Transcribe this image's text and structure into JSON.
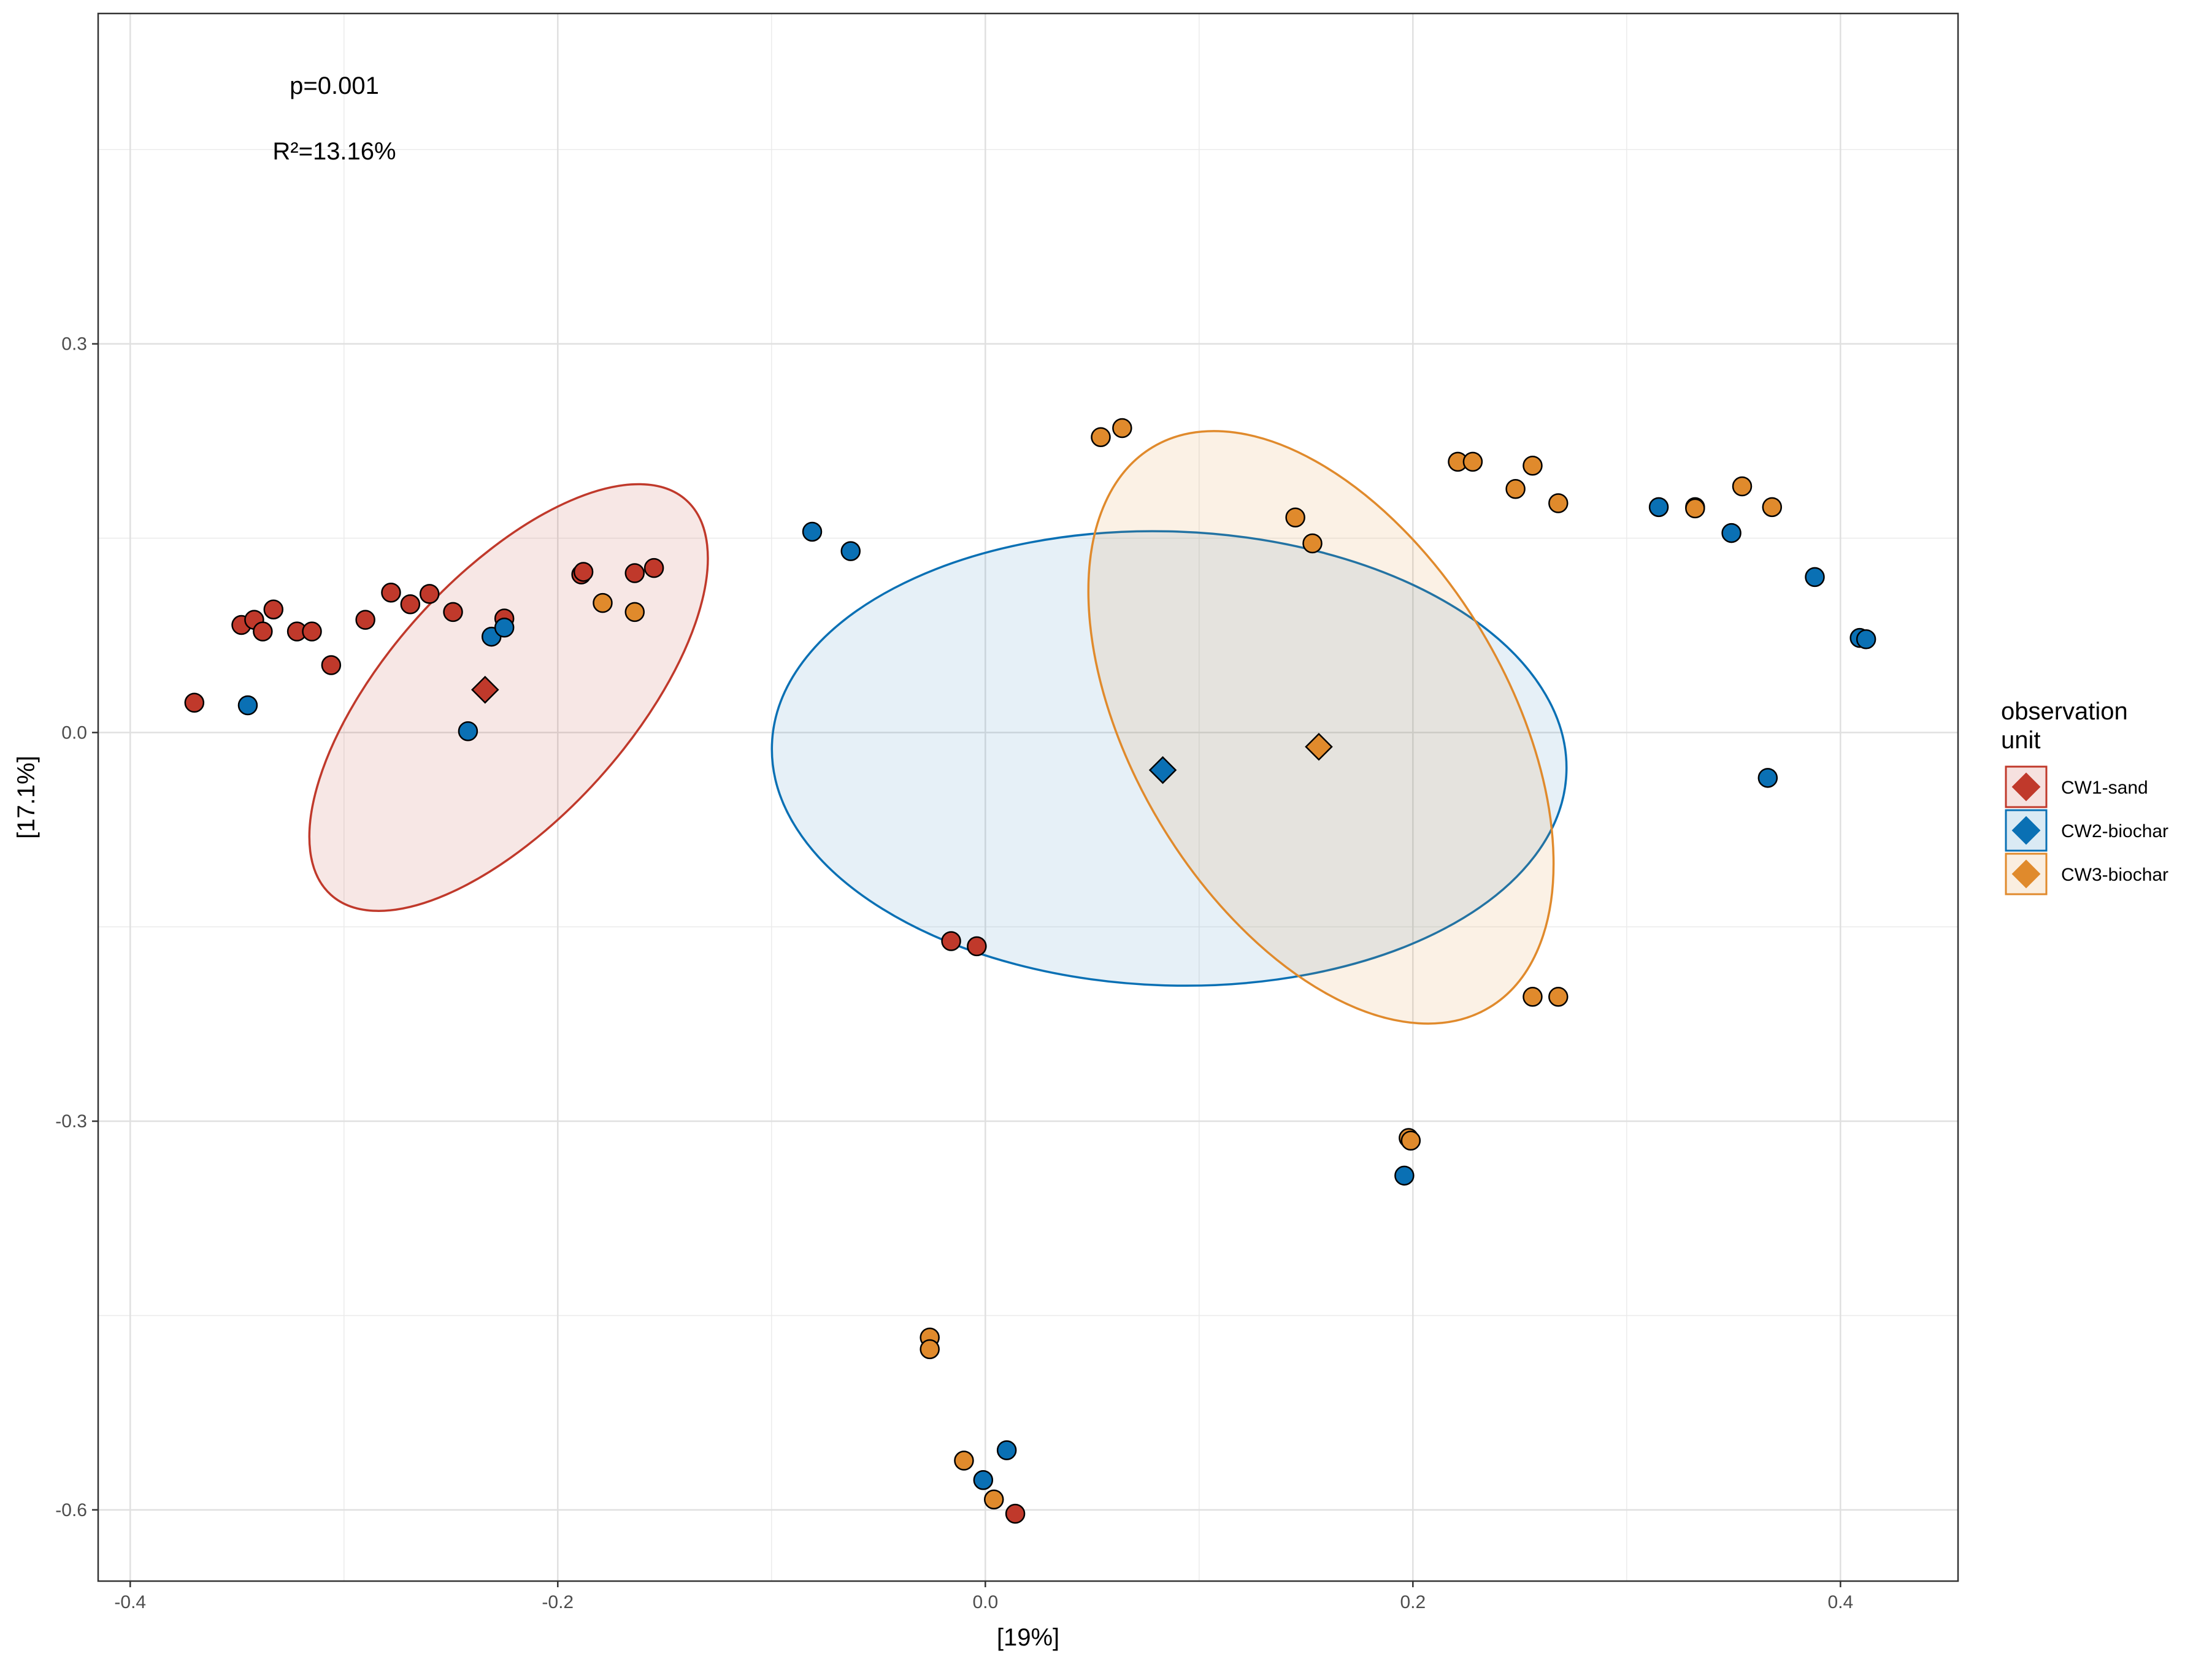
{
  "chart_data": {
    "type": "scatter",
    "xlabel": "[19%]",
    "ylabel": "[17.1%]",
    "xlim": [
      -0.415,
      0.455
    ],
    "ylim": [
      -0.655,
      0.555
    ],
    "x_ticks": [
      -0.4,
      -0.2,
      0.0,
      0.2,
      0.4
    ],
    "x_tick_labels": [
      "-0.4",
      "-0.2",
      "0.0",
      "0.2",
      "0.4"
    ],
    "y_ticks": [
      0.3,
      0.0,
      -0.3,
      -0.6
    ],
    "y_tick_labels": [
      "0.3",
      "0.0",
      "-0.3",
      "-0.6"
    ],
    "grid": true,
    "annotations": [
      "p=0.001",
      "R²=13.16%"
    ],
    "legend": {
      "title_lines": [
        "observation",
        "unit"
      ],
      "position": "right"
    },
    "series": [
      {
        "name": "CW1-sand",
        "color": "#c0392b",
        "fill_opacity": 0.12,
        "centroid": [
          -0.234,
          0.033
        ],
        "ellipse": {
          "center": [
            -0.223,
            0.027
          ],
          "rx": 0.067,
          "ry": 0.154,
          "angle_deg": -42
        },
        "points": [
          [
            -0.37,
            0.023
          ],
          [
            -0.348,
            0.083
          ],
          [
            -0.342,
            0.087
          ],
          [
            -0.338,
            0.078
          ],
          [
            -0.333,
            0.095
          ],
          [
            -0.322,
            0.078
          ],
          [
            -0.315,
            0.078
          ],
          [
            -0.306,
            0.052
          ],
          [
            -0.29,
            0.087
          ],
          [
            -0.278,
            0.108
          ],
          [
            -0.269,
            0.099
          ],
          [
            -0.26,
            0.107
          ],
          [
            -0.249,
            0.093
          ],
          [
            -0.225,
            0.088
          ],
          [
            -0.189,
            0.122
          ],
          [
            -0.188,
            0.124
          ],
          [
            -0.164,
            0.123
          ],
          [
            -0.155,
            0.127
          ],
          [
            -0.016,
            -0.161
          ],
          [
            -0.004,
            -0.165
          ],
          [
            0.014,
            -0.603
          ]
        ]
      },
      {
        "name": "CW2-biochar",
        "color": "#0a70b4",
        "fill_opacity": 0.1,
        "centroid": [
          0.083,
          -0.029
        ],
        "ellipse": {
          "center": [
            0.086,
            -0.02
          ],
          "rx": 0.175,
          "ry": 0.186,
          "angle_deg": 88
        },
        "points": [
          [
            -0.345,
            0.021
          ],
          [
            -0.242,
            0.001
          ],
          [
            -0.231,
            0.074
          ],
          [
            -0.225,
            0.081
          ],
          [
            -0.081,
            0.155
          ],
          [
            -0.063,
            0.14
          ],
          [
            0.196,
            -0.342
          ],
          [
            0.315,
            0.174
          ],
          [
            0.349,
            0.154
          ],
          [
            0.366,
            -0.035
          ],
          [
            0.388,
            0.12
          ],
          [
            0.409,
            0.073
          ],
          [
            0.412,
            0.072
          ],
          [
            0.01,
            -0.554
          ],
          [
            -0.001,
            -0.577
          ]
        ]
      },
      {
        "name": "CW3-biochar",
        "color": "#e08a2c",
        "fill_opacity": 0.12,
        "centroid": [
          0.156,
          -0.011
        ],
        "ellipse": {
          "center": [
            0.157,
            0.004
          ],
          "rx": 0.096,
          "ry": 0.209,
          "angle_deg": 31
        },
        "points": [
          [
            -0.179,
            0.1
          ],
          [
            -0.164,
            0.093
          ],
          [
            0.054,
            0.228
          ],
          [
            0.064,
            0.235
          ],
          [
            0.145,
            0.166
          ],
          [
            0.153,
            0.146
          ],
          [
            0.198,
            -0.313
          ],
          [
            0.199,
            -0.315
          ],
          [
            0.221,
            0.209
          ],
          [
            0.228,
            0.209
          ],
          [
            0.248,
            0.188
          ],
          [
            0.256,
            0.206
          ],
          [
            0.256,
            -0.204
          ],
          [
            0.268,
            0.177
          ],
          [
            0.268,
            -0.204
          ],
          [
            0.332,
            0.174
          ],
          [
            0.332,
            0.173
          ],
          [
            0.354,
            0.19
          ],
          [
            0.368,
            0.174
          ],
          [
            -0.026,
            -0.467
          ],
          [
            -0.026,
            -0.476
          ],
          [
            -0.01,
            -0.562
          ],
          [
            0.004,
            -0.592
          ]
        ]
      }
    ]
  }
}
